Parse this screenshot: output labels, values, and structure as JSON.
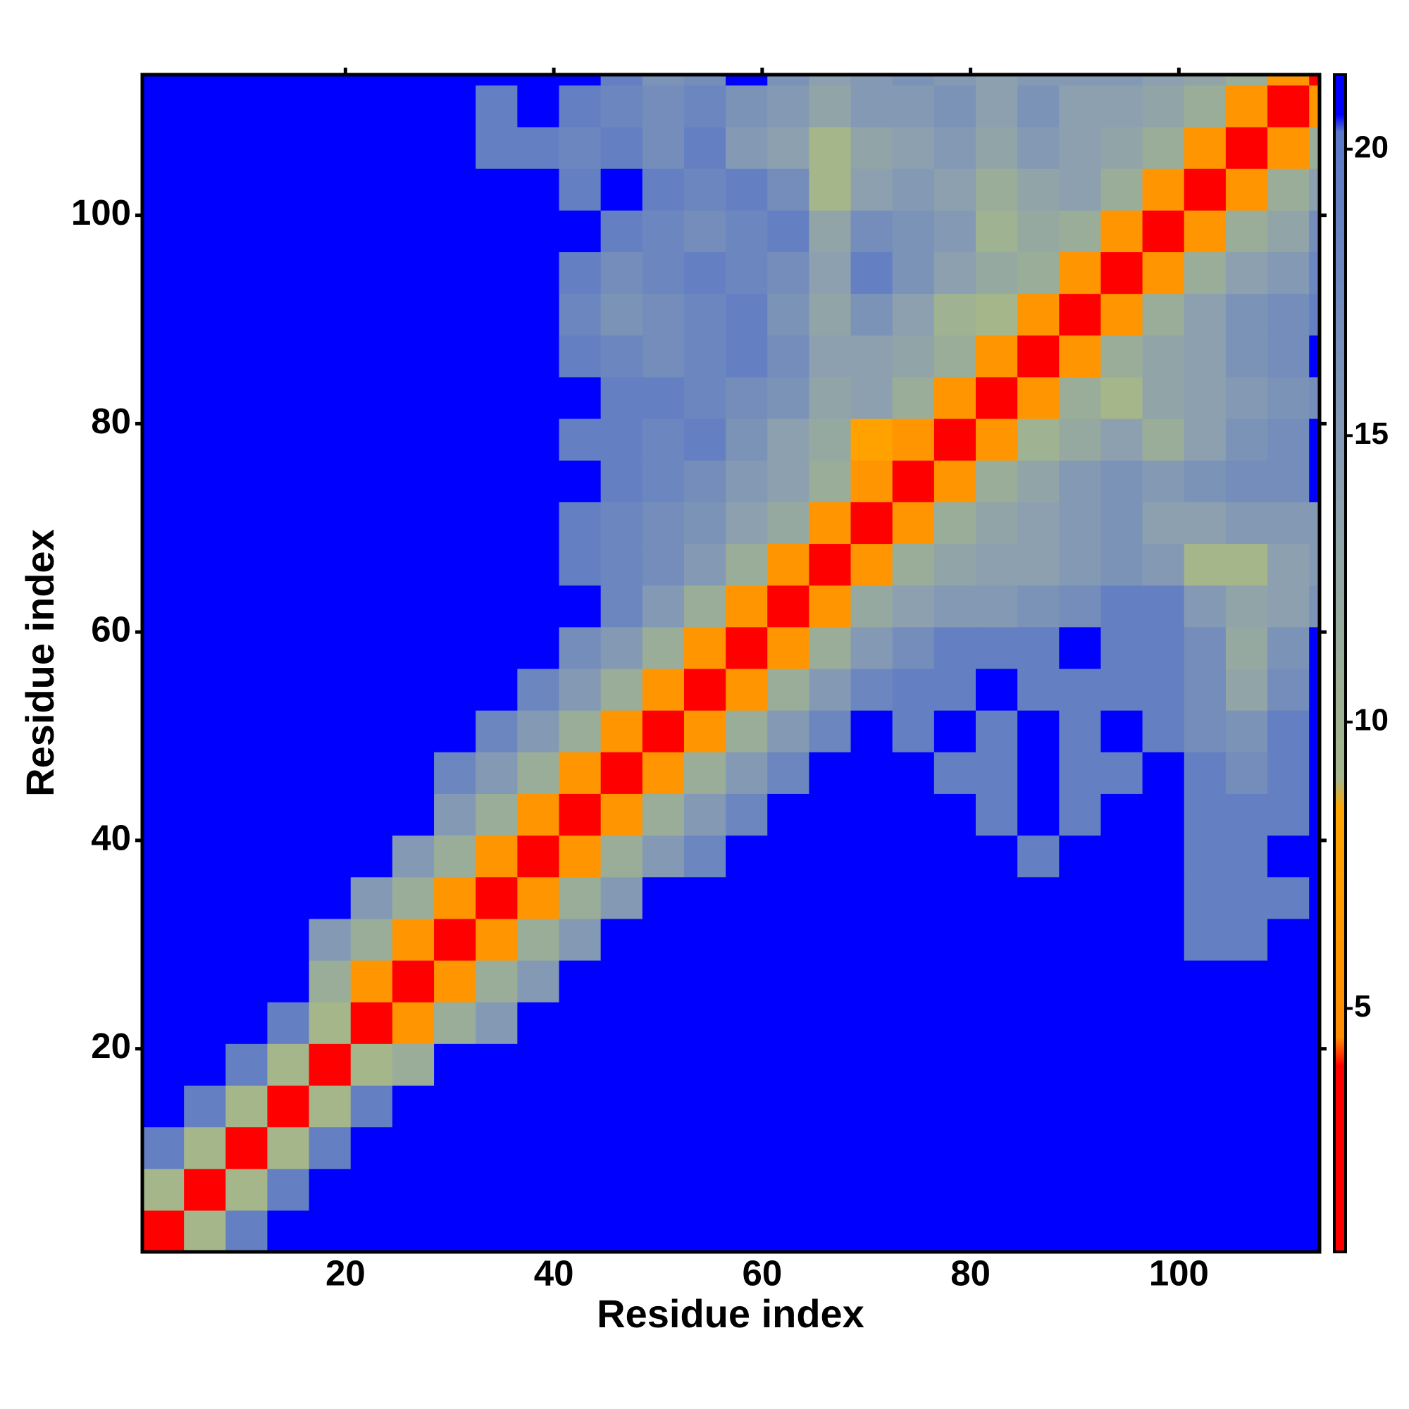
{
  "chart_data": {
    "type": "heatmap",
    "xlabel": "Residue index",
    "ylabel": "Residue index",
    "xlim": [
      0.5,
      113.5
    ],
    "ylim": [
      0.5,
      113.5
    ],
    "xticks": [
      20,
      40,
      60,
      80,
      100
    ],
    "yticks": [
      20,
      40,
      60,
      80,
      100
    ],
    "x": [
      2.5,
      6.5,
      10.5,
      14.5,
      18.5,
      22.5,
      26.5,
      30.5,
      34.5,
      38.5,
      42.5,
      46.5,
      50.5,
      54.5,
      58.5,
      62.5,
      66.5,
      70.5,
      74.5,
      78.5,
      82.5,
      86.5,
      90.5,
      94.5,
      98.5,
      102.5,
      106.5,
      110.5,
      114.5
    ],
    "y": [
      2.5,
      6.5,
      10.5,
      14.5,
      18.5,
      22.5,
      26.5,
      30.5,
      34.5,
      38.5,
      42.5,
      46.5,
      50.5,
      54.5,
      58.5,
      62.5,
      66.5,
      70.5,
      74.5,
      78.5,
      82.5,
      86.5,
      90.5,
      94.5,
      98.5,
      102.5,
      106.5,
      110.5,
      114.5
    ],
    "values": [
      [
        2,
        9,
        19,
        21,
        21,
        21,
        21,
        21,
        21,
        21,
        21,
        21,
        21,
        21,
        21,
        21,
        21,
        21,
        21,
        21,
        21,
        21,
        21,
        21,
        21,
        21,
        21,
        21,
        21
      ],
      [
        9,
        2,
        9,
        19,
        21,
        21,
        21,
        21,
        21,
        21,
        21,
        21,
        21,
        21,
        21,
        21,
        21,
        21,
        21,
        21,
        21,
        21,
        21,
        21,
        21,
        21,
        21,
        21,
        21
      ],
      [
        19,
        9,
        2,
        9,
        19,
        21,
        21,
        21,
        21,
        21,
        21,
        21,
        21,
        21,
        21,
        21,
        21,
        21,
        21,
        21,
        21,
        21,
        21,
        21,
        21,
        21,
        21,
        21,
        21
      ],
      [
        21,
        19,
        9,
        2,
        9,
        19,
        21,
        21,
        21,
        21,
        21,
        21,
        21,
        21,
        21,
        21,
        21,
        21,
        21,
        21,
        21,
        21,
        21,
        21,
        21,
        21,
        21,
        21,
        21
      ],
      [
        21,
        21,
        19,
        9,
        2,
        9,
        11,
        21,
        21,
        21,
        21,
        21,
        21,
        21,
        21,
        21,
        21,
        21,
        21,
        21,
        21,
        21,
        21,
        21,
        21,
        21,
        21,
        21,
        21
      ],
      [
        21,
        21,
        21,
        19,
        9,
        2,
        6,
        11,
        15,
        21,
        21,
        21,
        21,
        21,
        21,
        21,
        21,
        21,
        21,
        21,
        21,
        21,
        21,
        21,
        21,
        21,
        21,
        21,
        21
      ],
      [
        21,
        21,
        21,
        21,
        11,
        6,
        2,
        6,
        11,
        15,
        21,
        21,
        21,
        21,
        21,
        21,
        21,
        21,
        21,
        21,
        21,
        21,
        21,
        21,
        21,
        21,
        21,
        21,
        21
      ],
      [
        21,
        21,
        21,
        21,
        15,
        11,
        6,
        2,
        6,
        11,
        15,
        21,
        21,
        21,
        21,
        21,
        21,
        21,
        21,
        21,
        21,
        21,
        21,
        21,
        21,
        19,
        19,
        21,
        21
      ],
      [
        21,
        21,
        21,
        21,
        21,
        15,
        11,
        6,
        2,
        6,
        11,
        15,
        21,
        21,
        21,
        21,
        21,
        21,
        21,
        21,
        21,
        21,
        21,
        21,
        21,
        19,
        19,
        19,
        21
      ],
      [
        21,
        21,
        21,
        21,
        21,
        21,
        15,
        11,
        6,
        2,
        6,
        11,
        15,
        18,
        21,
        21,
        21,
        21,
        21,
        21,
        21,
        19,
        21,
        21,
        21,
        19,
        19,
        21,
        21
      ],
      [
        21,
        21,
        21,
        21,
        21,
        21,
        21,
        15,
        11,
        6,
        2,
        6,
        11,
        15,
        18,
        21,
        21,
        21,
        21,
        21,
        19,
        21,
        19,
        21,
        21,
        19,
        19,
        19,
        21
      ],
      [
        21,
        21,
        21,
        21,
        21,
        21,
        21,
        18,
        15,
        11,
        6,
        2,
        6,
        11,
        15,
        18,
        21,
        21,
        21,
        19,
        19,
        21,
        19,
        19,
        21,
        19,
        17,
        19,
        21
      ],
      [
        21,
        21,
        21,
        21,
        21,
        21,
        21,
        21,
        18,
        15,
        11,
        6,
        2,
        6,
        11,
        15,
        18,
        21,
        19,
        21,
        19,
        21,
        19,
        21,
        19,
        17,
        16,
        19,
        21
      ],
      [
        21,
        21,
        21,
        21,
        21,
        21,
        21,
        21,
        21,
        18,
        15,
        11,
        6,
        2,
        6,
        11,
        15,
        18,
        19,
        19,
        21,
        19,
        19,
        19,
        19,
        17,
        13,
        17,
        21
      ],
      [
        21,
        21,
        21,
        21,
        21,
        21,
        21,
        21,
        21,
        21,
        17,
        15,
        11,
        6,
        2,
        6,
        11,
        15,
        17,
        19,
        19,
        19,
        21,
        19,
        19,
        17,
        12,
        16,
        21
      ],
      [
        21,
        21,
        21,
        21,
        21,
        21,
        21,
        21,
        21,
        21,
        21,
        18,
        15,
        11,
        6,
        2,
        6,
        12,
        14,
        15,
        15,
        16,
        17,
        19,
        19,
        15,
        13,
        14,
        16
      ],
      [
        21,
        21,
        21,
        21,
        21,
        21,
        21,
        21,
        21,
        21,
        19,
        18,
        17,
        15,
        11,
        6,
        2,
        6,
        11,
        13,
        14,
        14,
        15,
        16,
        15,
        9,
        9,
        14,
        15
      ],
      [
        21,
        21,
        21,
        21,
        21,
        21,
        21,
        21,
        21,
        21,
        19,
        18,
        17,
        16,
        14,
        12,
        6,
        2,
        6,
        11,
        13,
        14,
        15,
        16,
        14,
        14,
        15,
        15,
        15
      ],
      [
        21,
        21,
        21,
        21,
        21,
        21,
        21,
        21,
        21,
        21,
        21,
        19,
        18,
        17,
        15,
        14,
        11,
        6,
        2,
        6,
        11,
        13,
        15,
        16,
        15,
        16,
        17,
        17,
        21
      ],
      [
        21,
        21,
        21,
        21,
        21,
        21,
        21,
        21,
        21,
        21,
        19,
        19,
        18,
        19,
        16,
        14,
        12,
        8,
        6,
        2,
        6,
        10,
        12,
        14,
        11,
        14,
        16,
        17,
        21
      ],
      [
        21,
        21,
        21,
        21,
        21,
        21,
        21,
        21,
        21,
        21,
        21,
        19,
        19,
        18,
        17,
        16,
        13,
        14,
        11,
        6,
        2,
        6,
        11,
        9,
        13,
        14,
        15,
        16,
        17
      ],
      [
        21,
        21,
        21,
        21,
        21,
        21,
        21,
        21,
        21,
        21,
        19,
        18,
        17,
        18,
        19,
        17,
        14,
        14,
        13,
        11,
        6,
        2,
        6,
        11,
        13,
        14,
        16,
        17,
        21
      ],
      [
        21,
        21,
        21,
        21,
        21,
        21,
        21,
        21,
        21,
        21,
        18,
        16,
        17,
        18,
        19,
        16,
        13,
        16,
        14,
        10,
        9,
        6,
        2,
        6,
        11,
        14,
        16,
        17,
        19
      ],
      [
        21,
        21,
        21,
        21,
        21,
        21,
        21,
        21,
        21,
        21,
        19,
        17,
        18,
        19,
        18,
        17,
        14,
        19,
        16,
        14,
        12,
        11,
        6,
        2,
        6,
        11,
        14,
        15,
        18
      ],
      [
        21,
        21,
        21,
        21,
        21,
        21,
        21,
        21,
        21,
        21,
        21,
        19,
        18,
        17,
        18,
        19,
        13,
        17,
        16,
        15,
        10,
        12,
        11,
        6,
        2,
        6,
        11,
        13,
        17
      ],
      [
        21,
        21,
        21,
        21,
        21,
        21,
        21,
        21,
        21,
        21,
        19,
        21,
        19,
        18,
        19,
        17,
        9,
        14,
        15,
        14,
        11,
        13,
        14,
        11,
        6,
        2,
        6,
        11,
        14
      ],
      [
        21,
        21,
        21,
        21,
        21,
        21,
        21,
        21,
        19,
        19,
        18,
        19,
        17,
        19,
        15,
        14,
        9,
        13,
        14,
        15,
        13,
        15,
        14,
        13,
        11,
        6,
        2,
        6,
        11
      ],
      [
        21,
        21,
        21,
        21,
        21,
        21,
        21,
        21,
        19,
        21,
        19,
        18,
        17,
        18,
        16,
        15,
        13,
        15,
        15,
        16,
        14,
        16,
        14,
        14,
        13,
        11,
        6,
        2,
        6
      ],
      [
        21,
        21,
        21,
        21,
        21,
        21,
        21,
        21,
        21,
        21,
        21,
        19,
        16,
        17,
        21,
        16,
        14,
        15,
        16,
        15,
        14,
        15,
        15,
        15,
        14,
        13,
        11,
        6,
        2
      ]
    ],
    "colorscale": [
      {
        "value": 0.75,
        "color": "#ff0000"
      },
      {
        "value": 4,
        "color": "#ff0000"
      },
      {
        "value": 4.5,
        "color": "#ff8c00"
      },
      {
        "value": 8.5,
        "color": "#ffa500"
      },
      {
        "value": 9,
        "color": "#a4b68a"
      },
      {
        "value": 14,
        "color": "#8ca0b0"
      },
      {
        "value": 20.3,
        "color": "#5a78c8"
      },
      {
        "value": 20.6,
        "color": "#0000ff"
      },
      {
        "value": 21.3,
        "color": "#0000ff"
      }
    ],
    "clim": [
      0.75,
      21.3
    ],
    "cticks": [
      5,
      10,
      15,
      20
    ]
  }
}
